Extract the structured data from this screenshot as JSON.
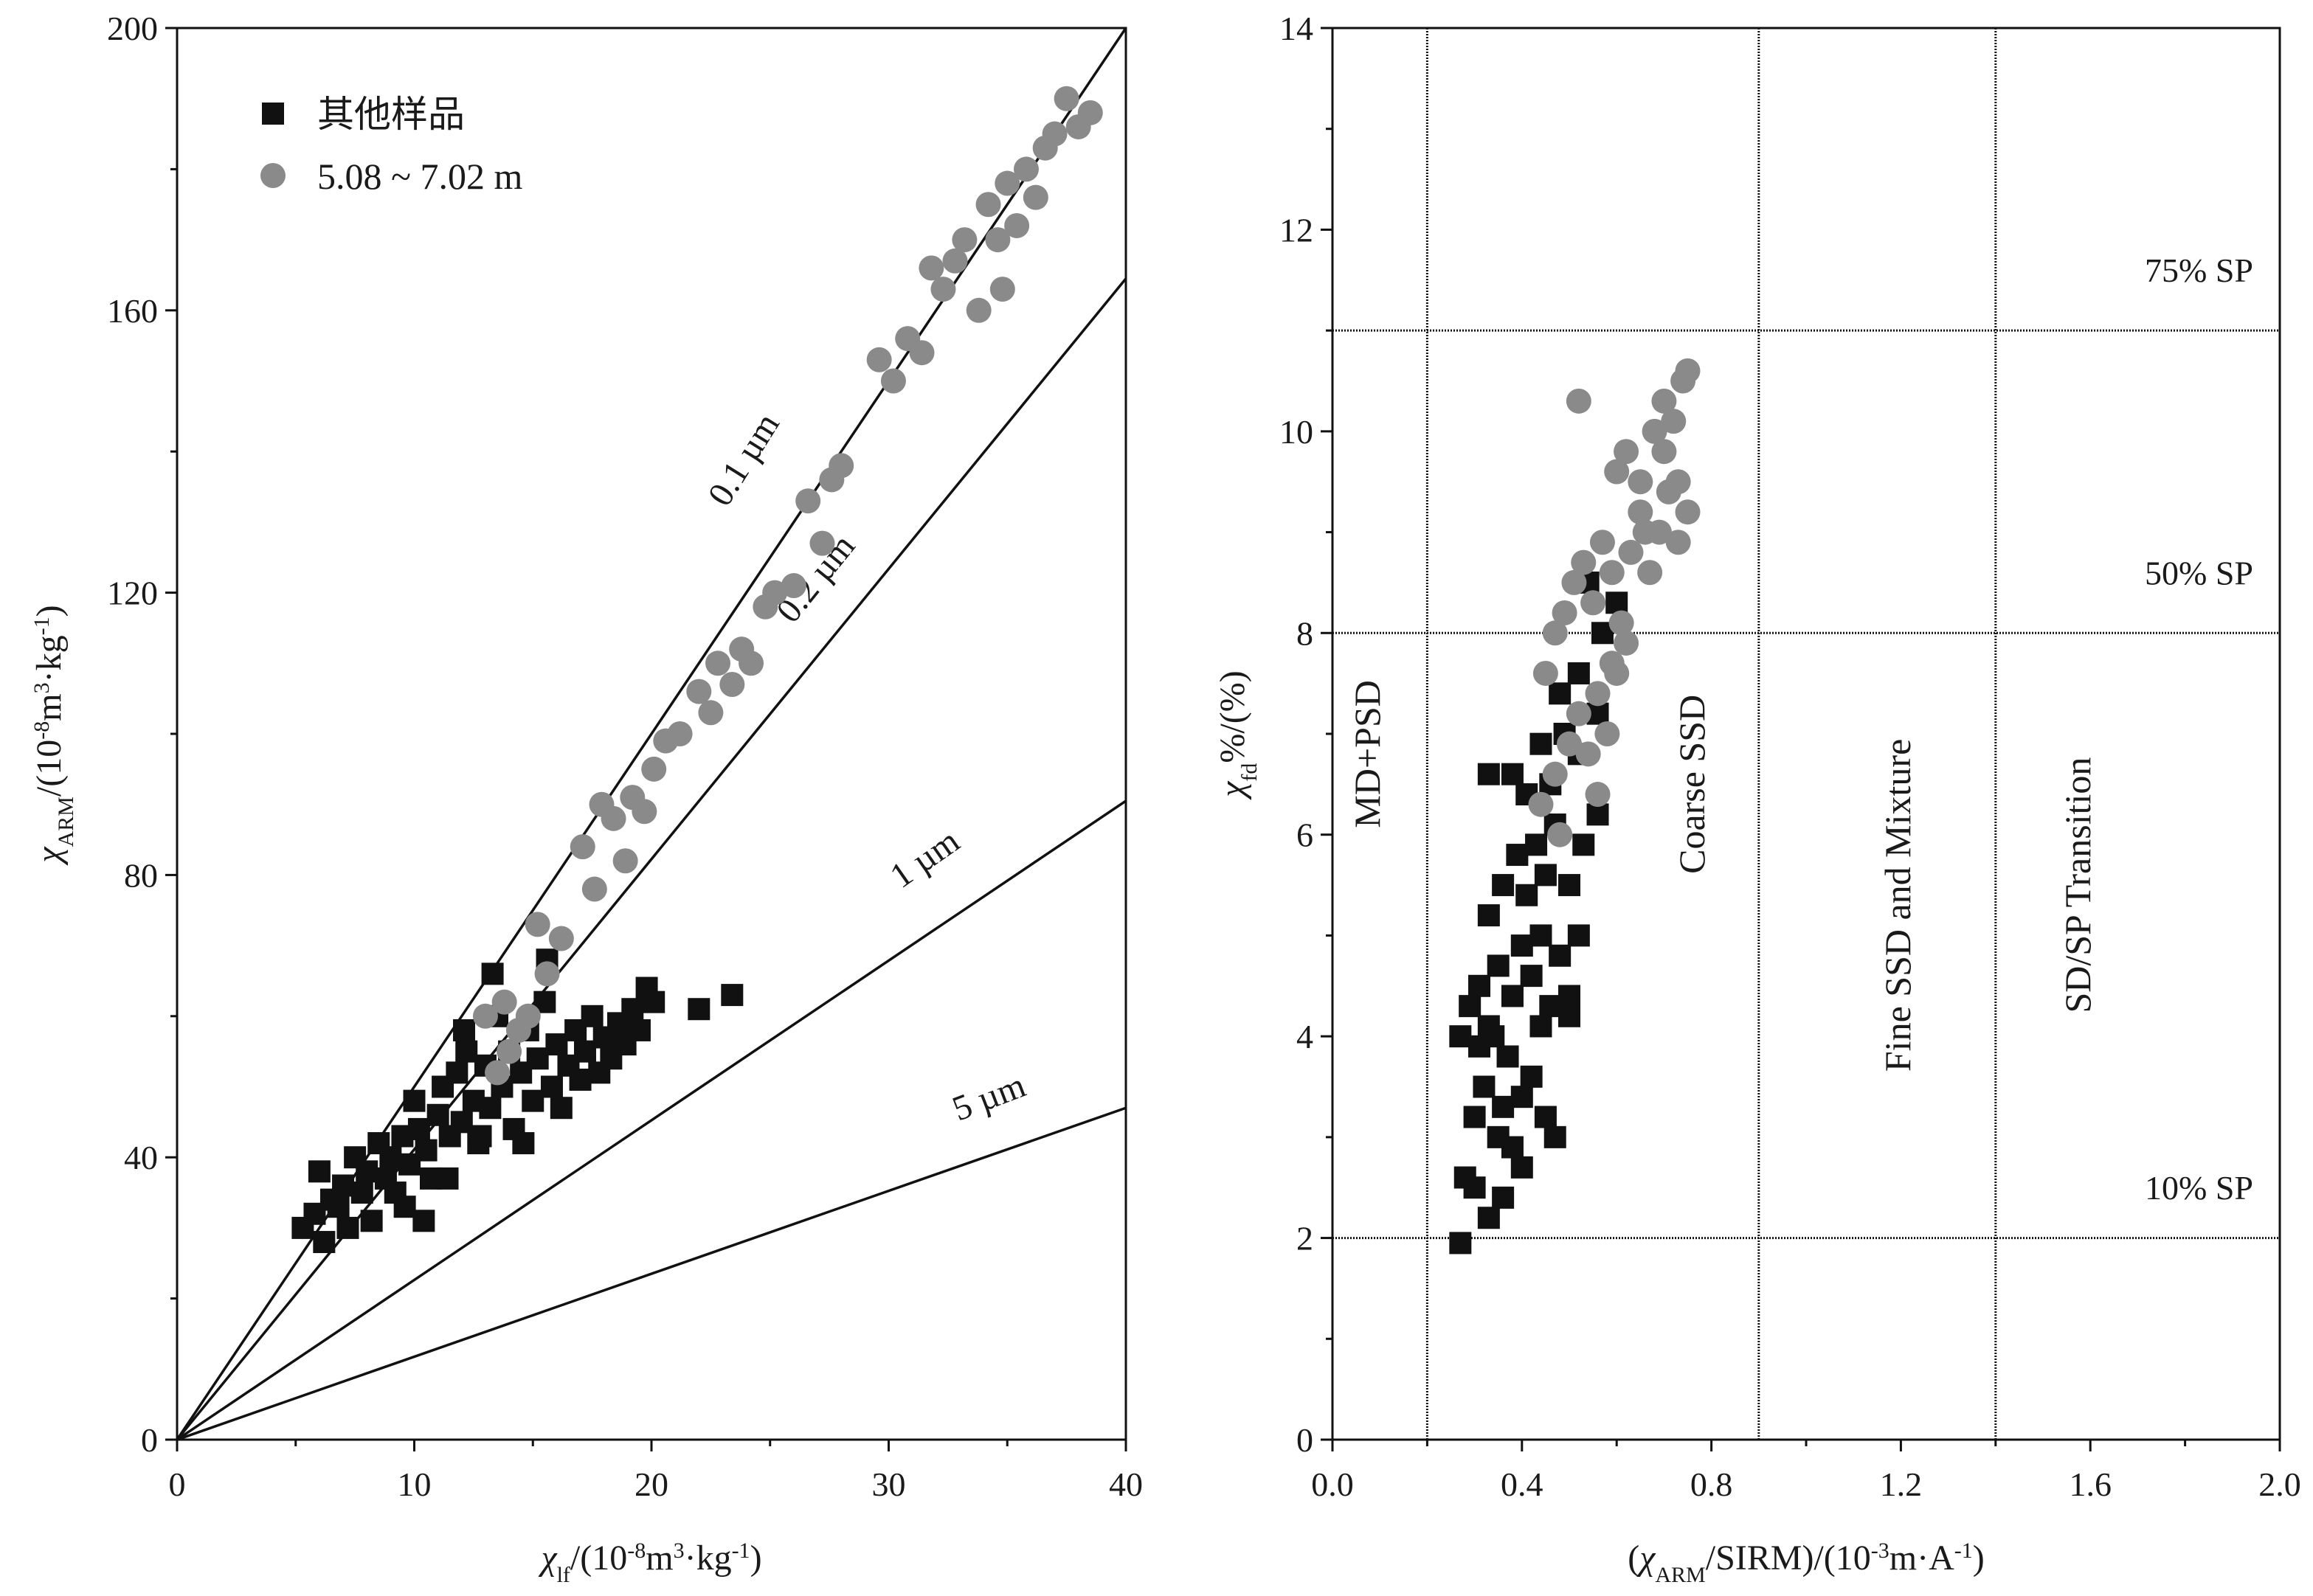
{
  "chart_data": [
    {
      "type": "scatter",
      "title": "",
      "xlabel": "χlf/(10-8m3·kg-1)",
      "ylabel": "χARM/(10-8m3·kg-1)",
      "xlim": [
        0,
        40
      ],
      "ylim": [
        0,
        200
      ],
      "x_ticks": [
        "0",
        "10",
        "20",
        "30",
        "40"
      ],
      "y_ticks": [
        "0",
        "40",
        "80",
        "120",
        "160",
        "200"
      ],
      "legend": {
        "position": "top-left",
        "entries": [
          "其他样品",
          "5.08 ~ 7.02 m"
        ]
      },
      "reference_lines": [
        {
          "label": "0.1 µm",
          "x_end": 40,
          "y_end": 200
        },
        {
          "label": "0.2 µm",
          "x_end": 40,
          "y_end": 164.5
        },
        {
          "label": "1 µm",
          "x_end": 40,
          "y_end": 90.5
        },
        {
          "label": "5 µm",
          "x_end": 40,
          "y_end": 47
        }
      ],
      "series": [
        {
          "name": "其他样品",
          "marker": "square",
          "color": "#111111",
          "points": [
            [
              5.3,
              30
            ],
            [
              5.8,
              32
            ],
            [
              6.0,
              38
            ],
            [
              6.2,
              28
            ],
            [
              6.5,
              34
            ],
            [
              6.8,
              33
            ],
            [
              7.0,
              36
            ],
            [
              7.2,
              30
            ],
            [
              7.5,
              40
            ],
            [
              7.8,
              35
            ],
            [
              8.0,
              38
            ],
            [
              8.2,
              31
            ],
            [
              8.5,
              42
            ],
            [
              8.8,
              37
            ],
            [
              9.0,
              40
            ],
            [
              9.2,
              35
            ],
            [
              9.5,
              43
            ],
            [
              9.8,
              39
            ],
            [
              10.0,
              48
            ],
            [
              10.2,
              44
            ],
            [
              10.5,
              41
            ],
            [
              10.7,
              37
            ],
            [
              11.0,
              46
            ],
            [
              11.2,
              50
            ],
            [
              11.5,
              43
            ],
            [
              11.8,
              52
            ],
            [
              12.0,
              45
            ],
            [
              12.2,
              55
            ],
            [
              12.5,
              48
            ],
            [
              12.7,
              42
            ],
            [
              13.0,
              53
            ],
            [
              13.2,
              47
            ],
            [
              13.5,
              60
            ],
            [
              13.7,
              50
            ],
            [
              14.0,
              55
            ],
            [
              14.2,
              44
            ],
            [
              14.5,
              52
            ],
            [
              14.8,
              58
            ],
            [
              15.0,
              48
            ],
            [
              15.2,
              54
            ],
            [
              15.5,
              62
            ],
            [
              15.8,
              50
            ],
            [
              16.0,
              56
            ],
            [
              16.2,
              47
            ],
            [
              16.5,
              53
            ],
            [
              16.8,
              58
            ],
            [
              17.0,
              51
            ],
            [
              17.2,
              55
            ],
            [
              17.5,
              60
            ],
            [
              17.8,
              52
            ],
            [
              18.0,
              57
            ],
            [
              18.3,
              54
            ],
            [
              18.6,
              59
            ],
            [
              18.9,
              56
            ],
            [
              19.2,
              61
            ],
            [
              19.5,
              58
            ],
            [
              19.8,
              64
            ],
            [
              20.1,
              62
            ],
            [
              22.0,
              61
            ],
            [
              23.4,
              63
            ],
            [
              13.3,
              66
            ],
            [
              15.6,
              68
            ],
            [
              14.6,
              42
            ],
            [
              12.8,
              43
            ],
            [
              11.4,
              37
            ],
            [
              9.6,
              33
            ],
            [
              10.4,
              31
            ],
            [
              12.1,
              58
            ]
          ]
        },
        {
          "name": "5.08 ~ 7.02 m",
          "marker": "circle",
          "color": "#8a8a8a",
          "points": [
            [
              13.0,
              60
            ],
            [
              13.5,
              52
            ],
            [
              13.8,
              62
            ],
            [
              14.0,
              55
            ],
            [
              14.4,
              58
            ],
            [
              14.8,
              60
            ],
            [
              15.2,
              73
            ],
            [
              15.6,
              66
            ],
            [
              16.2,
              71
            ],
            [
              17.1,
              84
            ],
            [
              17.6,
              78
            ],
            [
              17.9,
              90
            ],
            [
              18.4,
              88
            ],
            [
              18.9,
              82
            ],
            [
              19.2,
              91
            ],
            [
              19.7,
              89
            ],
            [
              20.1,
              95
            ],
            [
              20.6,
              99
            ],
            [
              21.2,
              100
            ],
            [
              22.0,
              106
            ],
            [
              22.5,
              103
            ],
            [
              22.8,
              110
            ],
            [
              23.4,
              107
            ],
            [
              23.8,
              112
            ],
            [
              24.2,
              110
            ],
            [
              24.8,
              118
            ],
            [
              25.2,
              120
            ],
            [
              26.0,
              121
            ],
            [
              26.6,
              133
            ],
            [
              27.2,
              127
            ],
            [
              27.6,
              136
            ],
            [
              28.0,
              138
            ],
            [
              29.6,
              153
            ],
            [
              30.2,
              150
            ],
            [
              30.8,
              156
            ],
            [
              31.4,
              154
            ],
            [
              31.8,
              166
            ],
            [
              32.3,
              163
            ],
            [
              32.8,
              167
            ],
            [
              33.2,
              170
            ],
            [
              33.8,
              160
            ],
            [
              34.2,
              175
            ],
            [
              34.6,
              170
            ],
            [
              35.0,
              178
            ],
            [
              35.4,
              172
            ],
            [
              35.8,
              180
            ],
            [
              36.2,
              176
            ],
            [
              36.6,
              183
            ],
            [
              37.0,
              185
            ],
            [
              37.5,
              190
            ],
            [
              38.0,
              186
            ],
            [
              38.5,
              188
            ],
            [
              34.8,
              163
            ]
          ]
        }
      ]
    },
    {
      "type": "scatter",
      "title": "",
      "xlabel": "(χARM/SIRM)/(10-3m·A-1)",
      "ylabel": "χfd%/(%)",
      "xlim": [
        0.0,
        2.0
      ],
      "ylim": [
        0,
        14
      ],
      "x_ticks": [
        "0.0",
        "0.4",
        "0.8",
        "1.2",
        "1.6",
        "2.0"
      ],
      "y_ticks": [
        "0",
        "2",
        "4",
        "6",
        "8",
        "10",
        "12",
        "14"
      ],
      "vertical_lines": [
        0.2,
        0.9,
        1.4
      ],
      "horizontal_lines": [
        2,
        8,
        11
      ],
      "regions": [
        "MD+PSD",
        "Coarse SSD",
        "Fine SSD and Mixture",
        "SD/SP Transition"
      ],
      "sp_labels": [
        "75% SP",
        "50% SP",
        "10% SP"
      ],
      "series": [
        {
          "name": "其他样品",
          "marker": "square",
          "color": "#111111",
          "points": [
            [
              0.27,
              1.95
            ],
            [
              0.28,
              2.6
            ],
            [
              0.3,
              2.5
            ],
            [
              0.33,
              2.2
            ],
            [
              0.36,
              2.4
            ],
            [
              0.38,
              2.9
            ],
            [
              0.4,
              2.7
            ],
            [
              0.3,
              3.2
            ],
            [
              0.32,
              3.5
            ],
            [
              0.35,
              3.0
            ],
            [
              0.37,
              3.8
            ],
            [
              0.4,
              3.4
            ],
            [
              0.42,
              3.6
            ],
            [
              0.45,
              3.2
            ],
            [
              0.47,
              3.0
            ],
            [
              0.27,
              4.0
            ],
            [
              0.29,
              4.3
            ],
            [
              0.31,
              4.5
            ],
            [
              0.33,
              4.1
            ],
            [
              0.35,
              4.7
            ],
            [
              0.38,
              4.4
            ],
            [
              0.4,
              4.9
            ],
            [
              0.42,
              4.6
            ],
            [
              0.44,
              5.0
            ],
            [
              0.46,
              4.3
            ],
            [
              0.48,
              4.8
            ],
            [
              0.5,
              4.2
            ],
            [
              0.52,
              5.0
            ],
            [
              0.33,
              5.2
            ],
            [
              0.36,
              5.5
            ],
            [
              0.39,
              5.8
            ],
            [
              0.41,
              5.4
            ],
            [
              0.43,
              5.9
            ],
            [
              0.45,
              5.6
            ],
            [
              0.47,
              6.1
            ],
            [
              0.5,
              5.5
            ],
            [
              0.53,
              5.9
            ],
            [
              0.56,
              6.2
            ],
            [
              0.38,
              6.6
            ],
            [
              0.41,
              6.4
            ],
            [
              0.44,
              6.9
            ],
            [
              0.46,
              6.5
            ],
            [
              0.49,
              7.0
            ],
            [
              0.52,
              6.8
            ],
            [
              0.56,
              7.2
            ],
            [
              0.33,
              6.6
            ],
            [
              0.48,
              7.4
            ],
            [
              0.52,
              7.6
            ],
            [
              0.54,
              8.5
            ],
            [
              0.6,
              8.3
            ],
            [
              0.57,
              8.0
            ],
            [
              0.31,
              3.9
            ],
            [
              0.34,
              4.0
            ],
            [
              0.36,
              3.3
            ],
            [
              0.44,
              4.1
            ],
            [
              0.5,
              4.4
            ]
          ]
        },
        {
          "name": "5.08 ~ 7.02 m",
          "marker": "circle",
          "color": "#8a8a8a",
          "points": [
            [
              0.44,
              6.3
            ],
            [
              0.47,
              6.6
            ],
            [
              0.5,
              6.9
            ],
            [
              0.52,
              7.2
            ],
            [
              0.54,
              6.8
            ],
            [
              0.56,
              7.4
            ],
            [
              0.58,
              7.0
            ],
            [
              0.6,
              7.6
            ],
            [
              0.45,
              7.6
            ],
            [
              0.47,
              8.0
            ],
            [
              0.49,
              8.2
            ],
            [
              0.51,
              8.5
            ],
            [
              0.53,
              8.7
            ],
            [
              0.55,
              8.3
            ],
            [
              0.57,
              8.9
            ],
            [
              0.59,
              8.6
            ],
            [
              0.61,
              8.1
            ],
            [
              0.63,
              8.8
            ],
            [
              0.65,
              9.2
            ],
            [
              0.67,
              8.6
            ],
            [
              0.69,
              9.0
            ],
            [
              0.71,
              9.4
            ],
            [
              0.73,
              8.9
            ],
            [
              0.75,
              9.2
            ],
            [
              0.6,
              9.6
            ],
            [
              0.62,
              9.8
            ],
            [
              0.65,
              9.5
            ],
            [
              0.68,
              10.0
            ],
            [
              0.7,
              10.3
            ],
            [
              0.72,
              10.1
            ],
            [
              0.74,
              10.5
            ],
            [
              0.75,
              10.6
            ],
            [
              0.52,
              10.3
            ],
            [
              0.7,
              9.8
            ],
            [
              0.73,
              9.5
            ],
            [
              0.66,
              9.0
            ],
            [
              0.62,
              7.9
            ],
            [
              0.59,
              7.7
            ],
            [
              0.56,
              6.4
            ],
            [
              0.48,
              6.0
            ]
          ]
        }
      ]
    }
  ]
}
